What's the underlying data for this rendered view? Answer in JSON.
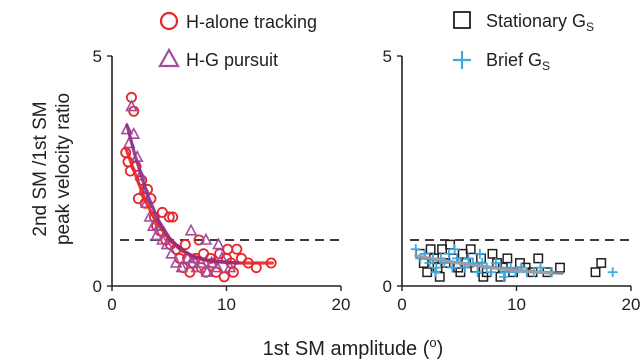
{
  "figure": {
    "ylabel_line1": "2nd SM /1st SM",
    "ylabel_line2": "peak velocity ratio",
    "xlabel": "1st SM amplitude (°)",
    "xlabel_main": "1st SM amplitude (",
    "xlabel_sup": "o",
    "xlabel_close": ")"
  },
  "legends": {
    "left": [
      {
        "label": "H-alone tracking",
        "marker": "circle",
        "color": "#e8262a"
      },
      {
        "label": "H-G pursuit",
        "marker": "triangle",
        "color": "#a24c9f"
      }
    ],
    "right": [
      {
        "label": "Stationary G",
        "sub": "S",
        "marker": "square",
        "color": "#231f20"
      },
      {
        "label": "Brief G",
        "sub": "S",
        "marker": "plus",
        "color": "#3fa9e0"
      }
    ]
  },
  "chart_data": [
    {
      "type": "scatter",
      "xlim": [
        0,
        20
      ],
      "ylim": [
        0,
        5
      ],
      "xticks": [
        "0",
        "10",
        "20"
      ],
      "yticks": [
        "0",
        "5"
      ],
      "reference_line": {
        "y": 1,
        "style": "dashed"
      },
      "series": [
        {
          "name": "H-alone tracking",
          "marker": "circle",
          "color": "#e8262a",
          "points": [
            [
              1.2,
              2.9
            ],
            [
              1.4,
              2.7
            ],
            [
              1.7,
              4.1
            ],
            [
              1.9,
              3.8
            ],
            [
              2.1,
              2.6
            ],
            [
              1.6,
              2.5
            ],
            [
              2.3,
              1.9
            ],
            [
              2.6,
              2.3
            ],
            [
              2.9,
              1.8
            ],
            [
              3.1,
              2.1
            ],
            [
              3.4,
              1.9
            ],
            [
              3.7,
              1.5
            ],
            [
              3.9,
              1.3
            ],
            [
              4.2,
              1.2
            ],
            [
              4.4,
              1.6
            ],
            [
              4.7,
              1.0
            ],
            [
              5.0,
              1.5
            ],
            [
              5.3,
              1.5
            ],
            [
              5.1,
              0.9
            ],
            [
              5.6,
              0.8
            ],
            [
              5.9,
              0.6
            ],
            [
              6.2,
              0.4
            ],
            [
              6.4,
              0.9
            ],
            [
              6.8,
              0.3
            ],
            [
              7.1,
              0.5
            ],
            [
              7.3,
              0.6
            ],
            [
              7.6,
              1.0
            ],
            [
              8.0,
              0.7
            ],
            [
              8.2,
              0.3
            ],
            [
              8.6,
              0.6
            ],
            [
              8.8,
              0.5
            ],
            [
              9.1,
              0.3
            ],
            [
              9.4,
              0.7
            ],
            [
              9.8,
              0.2
            ],
            [
              10.1,
              0.8
            ],
            [
              10.4,
              0.5
            ],
            [
              10.6,
              0.3
            ],
            [
              10.9,
              0.8
            ],
            [
              11.3,
              0.6
            ],
            [
              11.9,
              0.5
            ],
            [
              12.6,
              0.4
            ],
            [
              13.9,
              0.5
            ],
            [
              6.6,
              0.6
            ],
            [
              7.8,
              0.4
            ],
            [
              10.0,
              0.6
            ]
          ],
          "fit": [
            [
              1.2,
              3.0
            ],
            [
              2,
              2.45
            ],
            [
              3,
              1.8
            ],
            [
              4,
              1.35
            ],
            [
              5,
              1.0
            ],
            [
              6,
              0.78
            ],
            [
              7,
              0.65
            ],
            [
              8,
              0.57
            ],
            [
              9,
              0.53
            ],
            [
              10,
              0.51
            ],
            [
              11,
              0.5
            ],
            [
              12,
              0.5
            ],
            [
              13,
              0.5
            ],
            [
              14,
              0.5
            ]
          ]
        },
        {
          "name": "H-G pursuit",
          "marker": "triangle",
          "color": "#a24c9f",
          "points": [
            [
              1.3,
              3.4
            ],
            [
              1.5,
              3.1
            ],
            [
              1.7,
              3.9
            ],
            [
              1.9,
              3.3
            ],
            [
              2.2,
              2.8
            ],
            [
              2.5,
              2.4
            ],
            [
              2.8,
              2.1
            ],
            [
              3.0,
              1.8
            ],
            [
              3.3,
              1.5
            ],
            [
              3.6,
              1.3
            ],
            [
              3.9,
              1.1
            ],
            [
              4.1,
              1.3
            ],
            [
              4.4,
              1.0
            ],
            [
              4.8,
              0.9
            ],
            [
              5.2,
              0.7
            ],
            [
              5.6,
              0.5
            ],
            [
              6.1,
              0.4
            ],
            [
              6.6,
              0.6
            ],
            [
              7.0,
              0.5
            ],
            [
              7.4,
              0.4
            ],
            [
              7.8,
              0.5
            ],
            [
              8.3,
              0.3
            ],
            [
              8.7,
              0.5
            ],
            [
              9.2,
              0.4
            ],
            [
              9.6,
              0.6
            ],
            [
              10.3,
              0.4
            ],
            [
              6.9,
              1.2
            ],
            [
              8.2,
              1.0
            ],
            [
              9.3,
              0.9
            ]
          ],
          "fit": [
            [
              1.3,
              3.5
            ],
            [
              2,
              2.85
            ],
            [
              3,
              2.05
            ],
            [
              4,
              1.45
            ],
            [
              5,
              1.05
            ],
            [
              6,
              0.8
            ],
            [
              7,
              0.66
            ],
            [
              8,
              0.58
            ],
            [
              9,
              0.54
            ],
            [
              10,
              0.52
            ],
            [
              11,
              0.5
            ]
          ]
        }
      ]
    },
    {
      "type": "scatter",
      "xlim": [
        0,
        20
      ],
      "ylim": [
        0,
        5
      ],
      "xticks": [
        "0",
        "10",
        "20"
      ],
      "yticks": [
        "0",
        "5"
      ],
      "reference_line": {
        "y": 1,
        "style": "dashed"
      },
      "series": [
        {
          "name": "Stationary GS",
          "marker": "square",
          "color": "#231f20",
          "points": [
            [
              1.6,
              0.7
            ],
            [
              1.9,
              0.5
            ],
            [
              2.2,
              0.3
            ],
            [
              2.5,
              0.8
            ],
            [
              2.8,
              0.6
            ],
            [
              3.1,
              0.4
            ],
            [
              3.5,
              0.8
            ],
            [
              3.8,
              0.5
            ],
            [
              4.2,
              0.9
            ],
            [
              4.5,
              0.6
            ],
            [
              4.9,
              0.4
            ],
            [
              5.3,
              0.7
            ],
            [
              5.6,
              0.5
            ],
            [
              6.0,
              0.8
            ],
            [
              6.4,
              0.4
            ],
            [
              6.9,
              0.6
            ],
            [
              7.4,
              0.3
            ],
            [
              7.9,
              0.7
            ],
            [
              8.3,
              0.5
            ],
            [
              8.8,
              0.4
            ],
            [
              9.2,
              0.6
            ],
            [
              9.7,
              0.3
            ],
            [
              10.3,
              0.5
            ],
            [
              10.8,
              0.4
            ],
            [
              11.4,
              0.3
            ],
            [
              11.9,
              0.6
            ],
            [
              12.7,
              0.3
            ],
            [
              13.8,
              0.4
            ],
            [
              16.9,
              0.3
            ],
            [
              17.4,
              0.5
            ],
            [
              3.3,
              0.2
            ],
            [
              5.1,
              0.3
            ],
            [
              7.1,
              0.2
            ],
            [
              8.6,
              0.2
            ]
          ],
          "fit": [
            [
              1.6,
              0.62
            ],
            [
              3,
              0.57
            ],
            [
              5,
              0.5
            ],
            [
              7,
              0.43
            ],
            [
              9,
              0.37
            ],
            [
              11,
              0.32
            ],
            [
              13,
              0.29
            ],
            [
              14,
              0.28
            ]
          ]
        },
        {
          "name": "Brief GS",
          "marker": "plus",
          "color": "#3fa9e0",
          "points": [
            [
              1.2,
              0.8
            ],
            [
              1.6,
              0.6
            ],
            [
              2.0,
              0.7
            ],
            [
              2.4,
              0.5
            ],
            [
              2.7,
              0.6
            ],
            [
              3.0,
              0.4
            ],
            [
              3.4,
              0.6
            ],
            [
              3.7,
              0.5
            ],
            [
              4.1,
              0.7
            ],
            [
              4.4,
              0.4
            ],
            [
              4.8,
              0.6
            ],
            [
              5.1,
              0.5
            ],
            [
              5.5,
              0.4
            ],
            [
              5.8,
              0.6
            ],
            [
              6.2,
              0.5
            ],
            [
              6.6,
              0.3
            ],
            [
              7.0,
              0.5
            ],
            [
              7.4,
              0.4
            ],
            [
              7.8,
              0.3
            ],
            [
              8.2,
              0.5
            ],
            [
              8.6,
              0.4
            ],
            [
              9.0,
              0.3
            ],
            [
              9.5,
              0.4
            ],
            [
              9.9,
              0.3
            ],
            [
              10.4,
              0.4
            ],
            [
              10.9,
              0.3
            ],
            [
              11.5,
              0.3
            ],
            [
              12.1,
              0.4
            ],
            [
              13.0,
              0.3
            ],
            [
              2.9,
              0.3
            ],
            [
              4.6,
              0.8
            ],
            [
              6.8,
              0.7
            ],
            [
              8.9,
              0.2
            ],
            [
              18.4,
              0.3
            ]
          ],
          "fit": [
            [
              1.2,
              0.66
            ],
            [
              3,
              0.58
            ],
            [
              5,
              0.5
            ],
            [
              7,
              0.43
            ],
            [
              9,
              0.36
            ],
            [
              11,
              0.31
            ],
            [
              13,
              0.28
            ]
          ]
        }
      ]
    }
  ]
}
